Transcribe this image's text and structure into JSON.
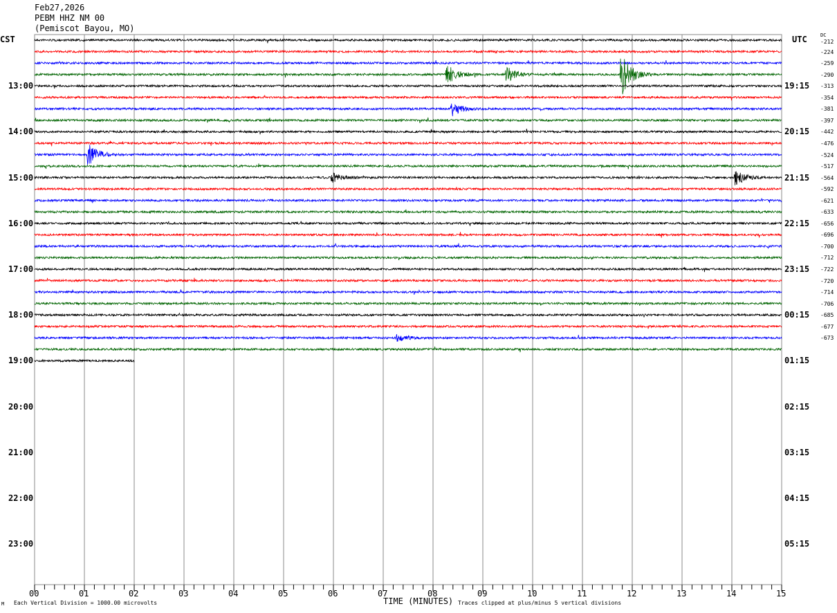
{
  "header": {
    "date": "Feb27,2026",
    "station": "PEBM HHZ NM 00",
    "location": "(Pemiscot Bayou, MO)"
  },
  "left_axis_title": "CST",
  "right_axis_title": "UTC",
  "dc_title": "DC",
  "chart_data": {
    "type": "line",
    "title": "Feb27,2026 PEBM HHZ NM 00 (Pemiscot Bayou, MO)",
    "xlabel": "TIME (MINUTES)",
    "xlim": [
      0,
      15
    ],
    "x_ticks": [
      "00",
      "01",
      "02",
      "03",
      "04",
      "05",
      "06",
      "07",
      "08",
      "09",
      "10",
      "11",
      "12",
      "13",
      "14",
      "15"
    ],
    "left_hour_labels": [
      "13:00",
      "14:00",
      "15:00",
      "16:00",
      "17:00",
      "18:00",
      "19:00",
      "20:00",
      "21:00",
      "22:00",
      "23:00"
    ],
    "right_hour_labels": [
      "19:15",
      "20:15",
      "21:15",
      "22:15",
      "23:15",
      "00:15",
      "01:15",
      "02:15",
      "03:15",
      "04:15",
      "05:15"
    ],
    "trace_colors": [
      "#000000",
      "#ff0000",
      "#0000ff",
      "#006400"
    ],
    "dc_values": [
      "-212",
      "-224",
      "-259",
      "-290",
      "-313",
      "-354",
      "-381",
      "-397",
      "-442",
      "-476",
      "-524",
      "-517",
      "-564",
      "-592",
      "-621",
      "-633",
      "-656",
      "-696",
      "-700",
      "-712",
      "-722",
      "-720",
      "-714",
      "-706",
      "-685",
      "-677",
      "-673"
    ],
    "traces_recorded": 29,
    "last_trace_end_minute": 2,
    "notable_events": [
      {
        "trace": 3,
        "minute": 11.8,
        "amplitude": 1.8
      },
      {
        "trace": 3,
        "minute": 8.3,
        "amplitude": 0.8
      },
      {
        "trace": 3,
        "minute": 9.5,
        "amplitude": 0.6
      },
      {
        "trace": 6,
        "minute": 8.4,
        "amplitude": 0.6
      },
      {
        "trace": 10,
        "minute": 1.1,
        "amplitude": 1.0
      },
      {
        "trace": 12,
        "minute": 14.1,
        "amplitude": 0.6
      },
      {
        "trace": 12,
        "minute": 6.0,
        "amplitude": 0.35
      },
      {
        "trace": 26,
        "minute": 7.3,
        "amplitude": 0.3
      }
    ]
  },
  "footer": {
    "scale_note": "Each Vertical Division = 1000.00 microvolts",
    "clip_note": "Traces clipped at plus/minus 5 vertical divisions",
    "logo_mark": "M"
  }
}
